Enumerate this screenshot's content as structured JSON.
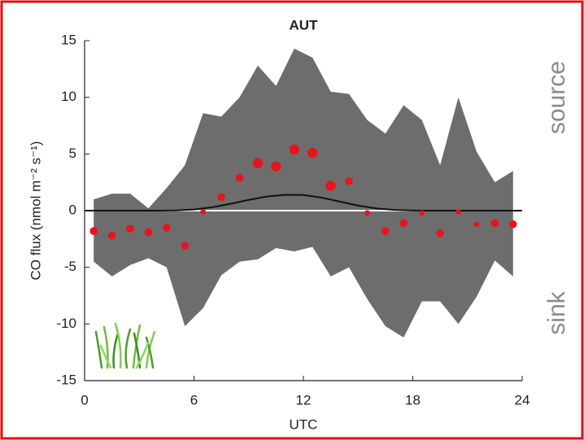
{
  "chart_data": {
    "type": "line",
    "title": "AUT",
    "xlabel": "UTC",
    "ylabel": "CO flux (nmol m⁻² s⁻¹)",
    "annotations": [
      "source",
      "sink"
    ],
    "xlim": [
      0,
      24
    ],
    "ylim": [
      -15,
      15
    ],
    "xticks": [
      0,
      6,
      12,
      18,
      24
    ],
    "yticks": [
      -15,
      -10,
      -5,
      0,
      5,
      10,
      15
    ],
    "band": {
      "color": "#6d6d6d",
      "x": [
        0.5,
        1.5,
        2.5,
        3.5,
        4.5,
        5.5,
        6.5,
        7.5,
        8.5,
        9.5,
        10.5,
        11.5,
        12.5,
        13.5,
        14.5,
        15.5,
        16.5,
        17.5,
        18.5,
        19.5,
        20.5,
        21.5,
        22.5,
        23.5
      ],
      "upper": [
        1,
        1.5,
        1.5,
        0.2,
        2,
        4,
        8.6,
        8.3,
        10,
        12.8,
        11,
        14.3,
        13.5,
        10.5,
        10.3,
        8,
        6.8,
        9.3,
        8,
        4,
        10,
        5.2,
        2.5,
        3.5
      ],
      "lower": [
        -4.5,
        -5.8,
        -4.8,
        -4.2,
        -5,
        -10.2,
        -8.6,
        -5.7,
        -4.5,
        -4.3,
        -3.3,
        -3.6,
        -3.2,
        -5.8,
        -5,
        -7.8,
        -10.2,
        -11.2,
        -8,
        -8,
        -10,
        -7.6,
        -4.4,
        -5.8
      ]
    },
    "line": {
      "color": "#111111",
      "x": [
        0,
        1,
        2,
        3,
        4,
        5,
        6,
        7,
        8,
        9,
        10,
        11,
        12,
        13,
        14,
        15,
        16,
        17,
        18,
        19,
        20,
        21,
        22,
        23,
        24
      ],
      "values": [
        0,
        0,
        0,
        0,
        0,
        0.02,
        0.1,
        0.3,
        0.6,
        0.95,
        1.25,
        1.4,
        1.38,
        1.15,
        0.8,
        0.45,
        0.2,
        0.06,
        0.01,
        0,
        0,
        0,
        0,
        0,
        0
      ]
    },
    "points": {
      "color": "#e8141b",
      "x": [
        0.5,
        1.5,
        2.5,
        3.5,
        4.5,
        5.5,
        6.5,
        7.5,
        8.5,
        9.5,
        10.5,
        11.5,
        12.5,
        13.5,
        14.5,
        15.5,
        16.5,
        17.5,
        18.5,
        19.5,
        20.5,
        21.5,
        22.5,
        23.5
      ],
      "values": [
        -1.8,
        -2.2,
        -1.6,
        -1.9,
        -1.5,
        -3.1,
        -0.1,
        1.2,
        2.9,
        4.2,
        3.9,
        5.4,
        5.1,
        2.2,
        2.6,
        -0.2,
        -1.8,
        -1.1,
        -0.2,
        -2.0,
        -0.1,
        -1.2,
        -1.1,
        -1.2
      ],
      "sizes": [
        2,
        2,
        2,
        2,
        2,
        2,
        1,
        2,
        2,
        3,
        3,
        3,
        3,
        3,
        2,
        1,
        2,
        2,
        1,
        2,
        1,
        1,
        2,
        2
      ]
    }
  }
}
